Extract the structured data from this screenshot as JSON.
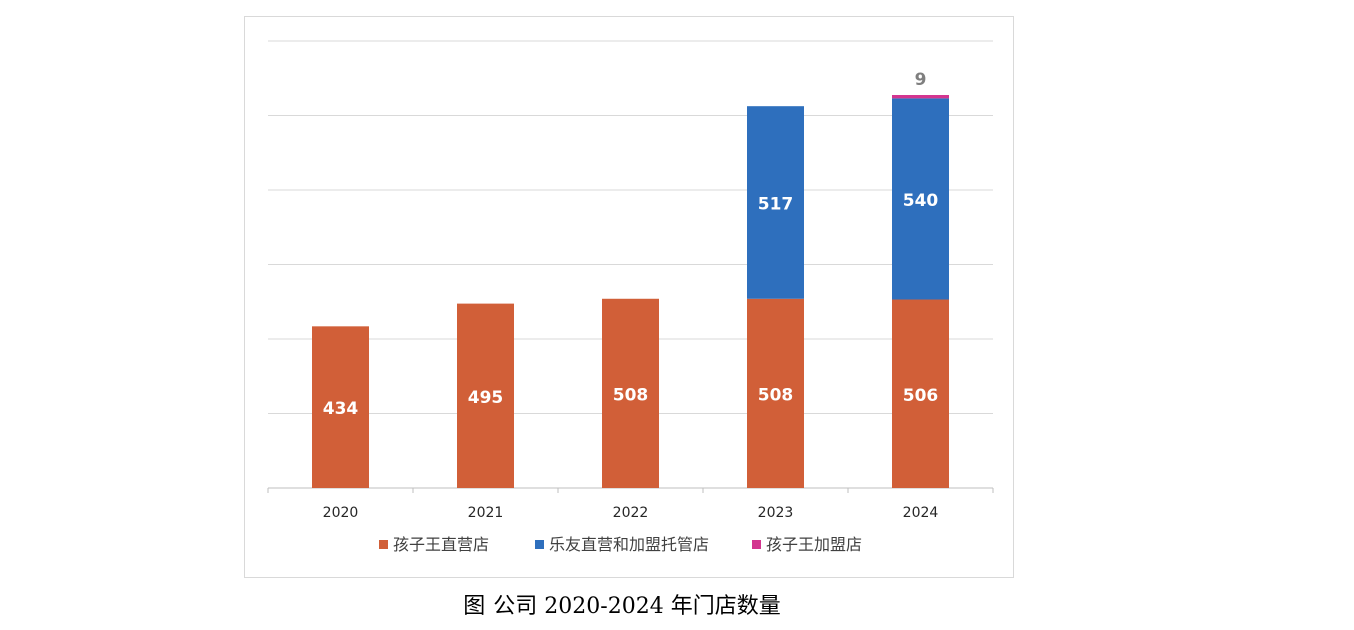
{
  "chart_data": {
    "type": "bar",
    "stacked": true,
    "categories": [
      "2020",
      "2021",
      "2022",
      "2023",
      "2024"
    ],
    "series": [
      {
        "name": "孩子王直营店",
        "values": [
          434,
          495,
          508,
          508,
          506
        ],
        "color": "#d15f38"
      },
      {
        "name": "乐友直营和加盟托管店",
        "values": [
          0,
          0,
          0,
          517,
          540
        ],
        "color": "#2e6fbd"
      },
      {
        "name": "孩子王加盟店",
        "values": [
          0,
          0,
          0,
          0,
          9
        ],
        "color": "#d3358f"
      }
    ],
    "data_labels": [
      [
        "434",
        "495",
        "508",
        "508",
        "506"
      ],
      [
        "",
        "",
        "",
        "517",
        "540"
      ],
      [
        "",
        "",
        "",
        "",
        "9"
      ]
    ],
    "ylim": [
      0,
      1200
    ],
    "gridline_values": [
      0,
      200,
      400,
      600,
      800,
      1000,
      1200
    ],
    "y_ticks_visible": false,
    "grid": true,
    "legend_position": "bottom",
    "title": "",
    "xlabel": "",
    "ylabel": ""
  },
  "caption": {
    "prefix": "图",
    "text": "公司 2020-2024 年门店数量"
  }
}
